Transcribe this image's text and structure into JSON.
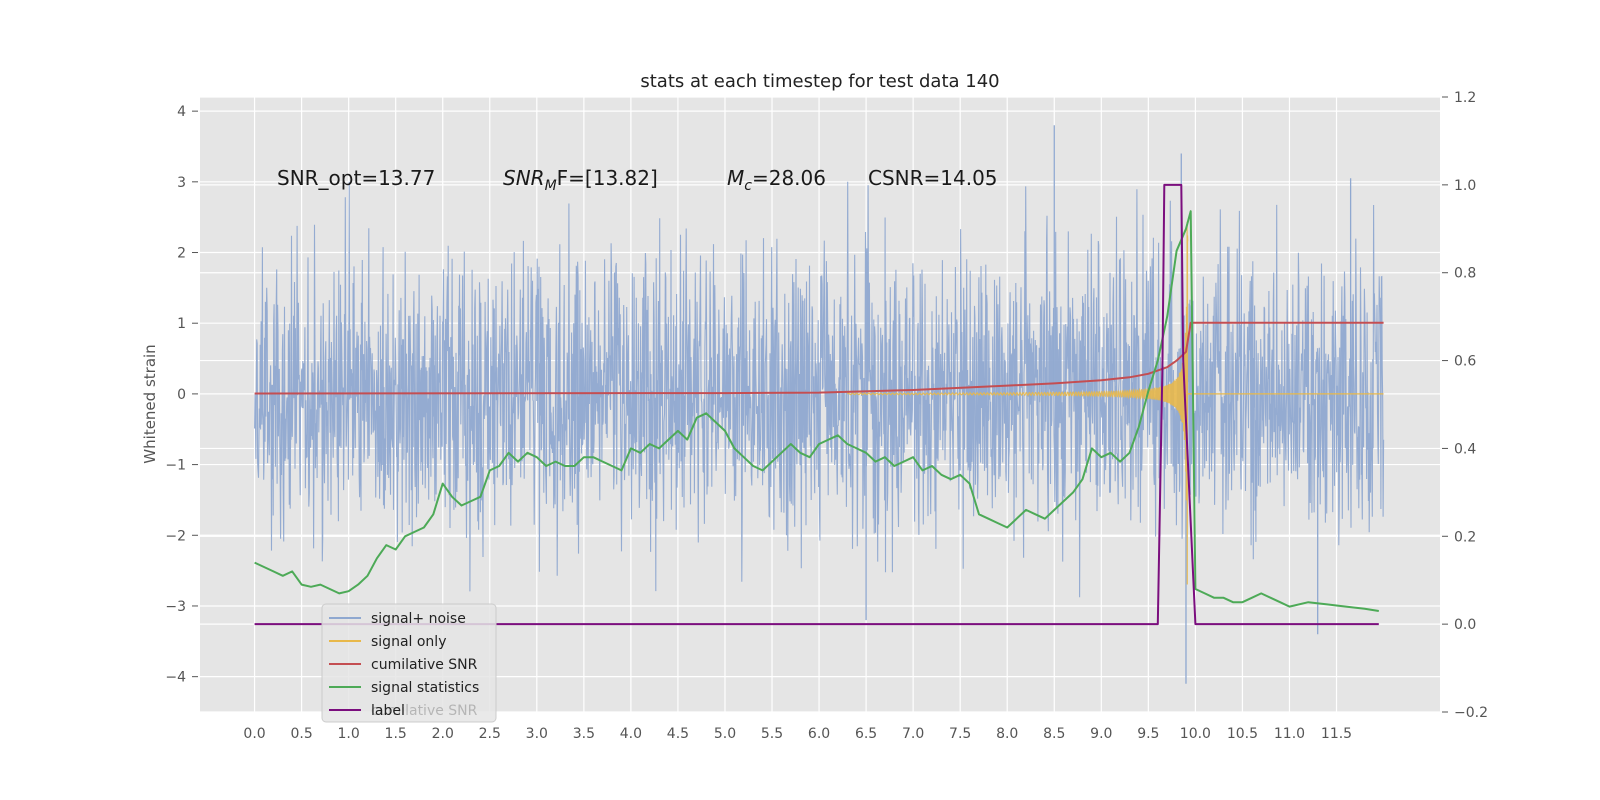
{
  "chart_data": {
    "type": "line",
    "title": "stats at each timestep for test data 140",
    "ylabel": "Whitened strain",
    "xlim": [
      -0.58,
      12.6
    ],
    "ylim_left": [
      -4.5,
      4.2
    ],
    "ylim_right": [
      -0.2,
      1.2
    ],
    "grid": true,
    "legend_position": "lower-left",
    "x_ticks": [
      "0.0",
      "0.5",
      "1.0",
      "1.5",
      "2.0",
      "2.5",
      "3.0",
      "3.5",
      "4.0",
      "4.5",
      "5.0",
      "5.5",
      "6.0",
      "6.5",
      "7.0",
      "7.5",
      "8.0",
      "8.5",
      "9.0",
      "9.5",
      "10.0",
      "10.5",
      "11.0",
      "11.5"
    ],
    "y_ticks_left": [
      "4",
      "3",
      "2",
      "1",
      "0",
      "−1",
      "−2",
      "−3",
      "−4"
    ],
    "y_ticks_right": [
      "1.2",
      "1.0",
      "0.8",
      "0.6",
      "0.4",
      "0.2",
      "0.0",
      "−0.2"
    ],
    "annotations": [
      {
        "id": "snr-opt",
        "text": "SNR_opt=13.77"
      },
      {
        "id": "snr-mf",
        "text": "SNR_MF=[13.82]",
        "parts": [
          "SNR",
          "M",
          "F=[13.82]"
        ]
      },
      {
        "id": "mc",
        "text": "M_c=28.06",
        "parts": [
          "M",
          "c",
          "=28.06"
        ]
      },
      {
        "id": "csnr",
        "text": "CSNR=14.05"
      }
    ],
    "series": [
      {
        "name": "signal+ noise",
        "axis": "left",
        "color": "#8fa8d0",
        "x_range": [
          0.0,
          12.0
        ],
        "amplitude": 1.0,
        "spikes": [
          [
            8.5,
            3.8
          ],
          [
            9.85,
            3.4
          ],
          [
            9.9,
            -4.1
          ],
          [
            6.5,
            -3.2
          ],
          [
            11.3,
            -3.4
          ],
          [
            11.65,
            3.05
          ]
        ]
      },
      {
        "name": "signal only",
        "axis": "left",
        "color": "#e8b84a",
        "chirp_start": 6.3,
        "chirp_end": 9.92,
        "peak_amplitude": 3.0
      },
      {
        "name": "cumilative SNR",
        "axis": "right",
        "color": "#c44e52",
        "x": [
          0.0,
          5.0,
          6.0,
          7.0,
          8.0,
          8.5,
          9.0,
          9.3,
          9.5,
          9.7,
          9.8,
          9.9,
          9.95,
          12.0
        ],
        "y": [
          0.525,
          0.526,
          0.527,
          0.533,
          0.543,
          0.548,
          0.555,
          0.562,
          0.57,
          0.585,
          0.6,
          0.62,
          0.686,
          0.686
        ]
      },
      {
        "name": "signal statistics",
        "axis": "right",
        "color": "#4daa57",
        "x": [
          0.0,
          0.1,
          0.2,
          0.3,
          0.4,
          0.5,
          0.6,
          0.7,
          0.8,
          0.9,
          1.0,
          1.1,
          1.2,
          1.3,
          1.4,
          1.5,
          1.6,
          1.7,
          1.8,
          1.9,
          2.0,
          2.1,
          2.2,
          2.3,
          2.4,
          2.5,
          2.6,
          2.7,
          2.8,
          2.9,
          3.0,
          3.1,
          3.2,
          3.3,
          3.4,
          3.5,
          3.6,
          3.7,
          3.8,
          3.9,
          4.0,
          4.1,
          4.2,
          4.3,
          4.4,
          4.5,
          4.6,
          4.7,
          4.8,
          4.9,
          5.0,
          5.1,
          5.2,
          5.3,
          5.4,
          5.5,
          5.6,
          5.7,
          5.8,
          5.9,
          6.0,
          6.1,
          6.2,
          6.3,
          6.4,
          6.5,
          6.6,
          6.7,
          6.8,
          6.9,
          7.0,
          7.1,
          7.2,
          7.3,
          7.4,
          7.5,
          7.6,
          7.7,
          7.8,
          7.9,
          8.0,
          8.1,
          8.2,
          8.3,
          8.4,
          8.5,
          8.6,
          8.7,
          8.8,
          8.9,
          9.0,
          9.1,
          9.2,
          9.3,
          9.4,
          9.5,
          9.6,
          9.7,
          9.8,
          9.9,
          9.95,
          10.0,
          10.1,
          10.2,
          10.3,
          10.4,
          10.5,
          10.6,
          10.7,
          10.8,
          10.9,
          11.0,
          11.2,
          11.4,
          11.6,
          11.8,
          11.95
        ],
        "y": [
          0.14,
          0.13,
          0.12,
          0.11,
          0.12,
          0.09,
          0.085,
          0.09,
          0.08,
          0.07,
          0.075,
          0.09,
          0.11,
          0.15,
          0.18,
          0.17,
          0.2,
          0.21,
          0.22,
          0.25,
          0.32,
          0.29,
          0.27,
          0.28,
          0.29,
          0.35,
          0.36,
          0.39,
          0.37,
          0.39,
          0.38,
          0.36,
          0.37,
          0.36,
          0.36,
          0.38,
          0.38,
          0.37,
          0.36,
          0.35,
          0.4,
          0.39,
          0.41,
          0.4,
          0.42,
          0.44,
          0.42,
          0.47,
          0.48,
          0.46,
          0.44,
          0.4,
          0.38,
          0.36,
          0.35,
          0.37,
          0.39,
          0.41,
          0.39,
          0.38,
          0.41,
          0.42,
          0.43,
          0.41,
          0.4,
          0.39,
          0.37,
          0.38,
          0.36,
          0.37,
          0.38,
          0.35,
          0.36,
          0.34,
          0.33,
          0.34,
          0.32,
          0.25,
          0.24,
          0.23,
          0.22,
          0.24,
          0.26,
          0.25,
          0.24,
          0.26,
          0.28,
          0.3,
          0.33,
          0.4,
          0.38,
          0.39,
          0.37,
          0.39,
          0.45,
          0.53,
          0.6,
          0.7,
          0.85,
          0.9,
          0.94,
          0.08,
          0.07,
          0.06,
          0.06,
          0.05,
          0.05,
          0.06,
          0.07,
          0.06,
          0.05,
          0.04,
          0.05,
          0.045,
          0.04,
          0.035,
          0.03
        ]
      },
      {
        "name": "label",
        "axis": "right",
        "color": "#7b0e7e",
        "x": [
          0.0,
          9.6,
          9.65,
          9.67,
          9.85,
          9.87,
          10.0,
          11.95
        ],
        "y": [
          0.0,
          0.0,
          0.6,
          1.0,
          1.0,
          0.6,
          0.0,
          0.0
        ]
      }
    ],
    "legend_ghost_label": "cumilative SNR"
  }
}
